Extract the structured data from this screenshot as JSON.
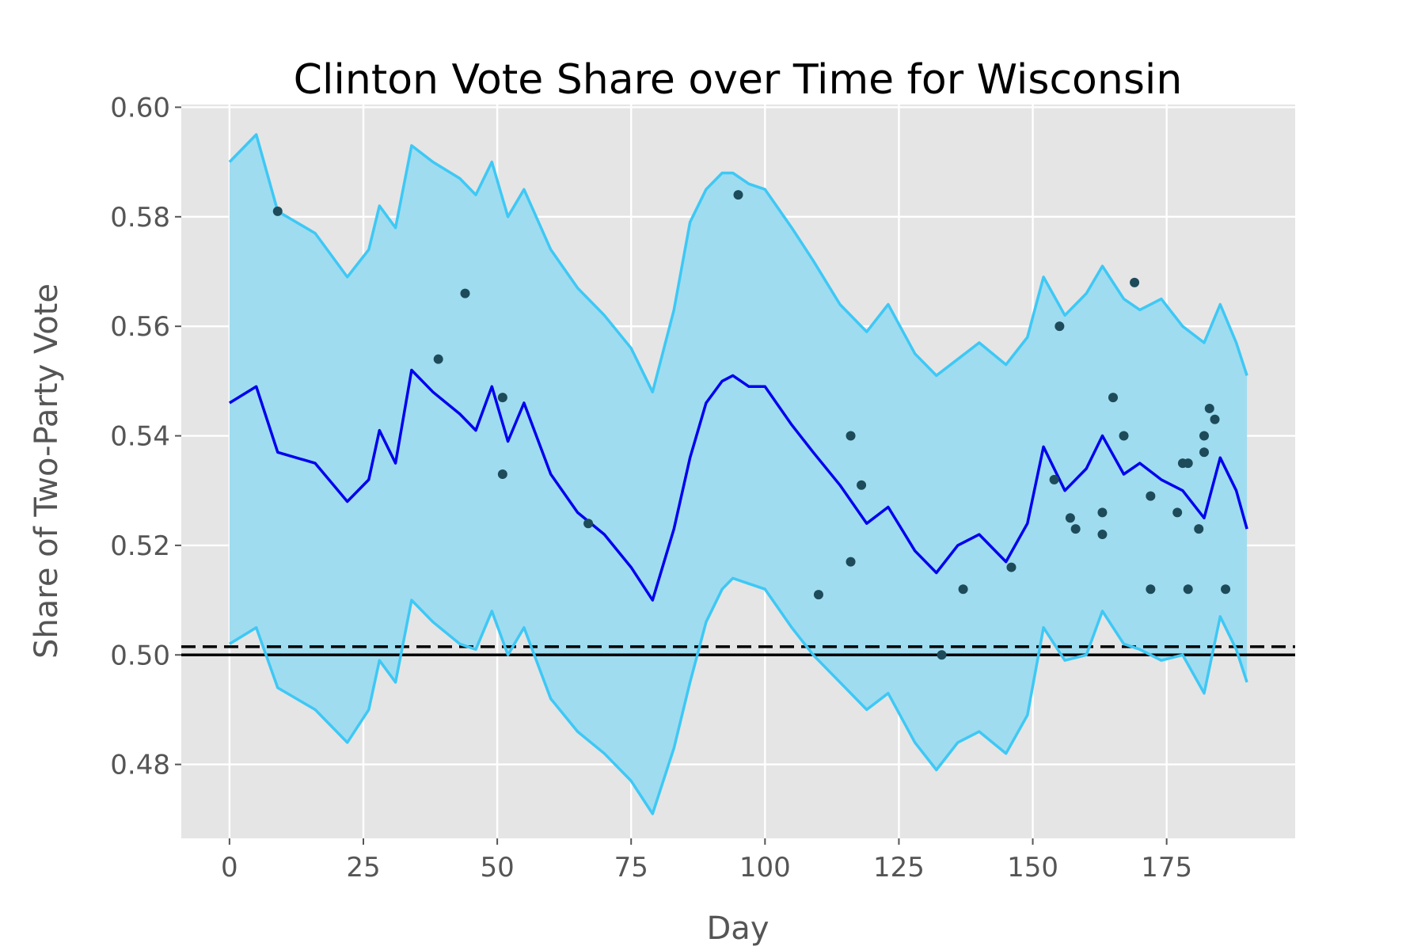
{
  "chart_data": {
    "type": "line",
    "title": "Clinton Vote Share over Time for Wisconsin",
    "xlabel": "Day",
    "ylabel": "Share of Two-Party Vote",
    "xlim": [
      -9,
      199
    ],
    "ylim": [
      0.4665,
      0.6005
    ],
    "xticks": [
      0,
      25,
      50,
      75,
      100,
      125,
      150,
      175
    ],
    "yticks": [
      0.48,
      0.5,
      0.52,
      0.54,
      0.56,
      0.58,
      0.6
    ],
    "ytick_labels": [
      "0.48",
      "0.50",
      "0.52",
      "0.54",
      "0.56",
      "0.58",
      "0.60"
    ],
    "grid": true,
    "background": "#e5e5e5",
    "colors": {
      "band_fill": "#9fdcf0",
      "band_edges": "#3ec8f5",
      "mean_line": "#0000ee",
      "polls": "#1d4b5a",
      "reference_lines": "#000000"
    },
    "x": [
      0,
      5,
      9,
      16,
      22,
      26,
      28,
      31,
      34,
      38,
      43,
      46,
      49,
      52,
      55,
      60,
      65,
      70,
      75,
      79,
      83,
      86,
      89,
      92,
      94,
      97,
      100,
      105,
      109,
      114,
      119,
      123,
      128,
      132,
      136,
      140,
      145,
      149,
      152,
      156,
      160,
      163,
      167,
      170,
      174,
      178,
      182,
      185,
      188,
      190
    ],
    "series": [
      {
        "values": [
          0.546,
          0.549,
          0.537,
          0.535,
          0.528,
          0.532,
          0.541,
          0.535,
          0.552,
          0.548,
          0.544,
          0.541,
          0.549,
          0.539,
          0.546,
          0.533,
          0.526,
          0.522,
          0.516,
          0.51,
          0.523,
          0.536,
          0.546,
          0.55,
          0.551,
          0.549,
          0.549,
          0.542,
          0.537,
          0.531,
          0.524,
          0.527,
          0.519,
          0.515,
          0.52,
          0.522,
          0.517,
          0.524,
          0.538,
          0.53,
          0.534,
          0.54,
          0.533,
          0.535,
          0.532,
          0.53,
          0.525,
          0.536,
          0.53,
          0.523
        ]
      },
      {
        "values": [
          0.59,
          0.595,
          0.581,
          0.577,
          0.569,
          0.574,
          0.582,
          0.578,
          0.593,
          0.59,
          0.587,
          0.584,
          0.59,
          0.58,
          0.585,
          0.574,
          0.567,
          0.562,
          0.556,
          0.548,
          0.563,
          0.579,
          0.585,
          0.588,
          0.588,
          0.586,
          0.585,
          0.578,
          0.572,
          0.564,
          0.559,
          0.564,
          0.555,
          0.551,
          0.554,
          0.557,
          0.553,
          0.558,
          0.569,
          0.562,
          0.566,
          0.571,
          0.565,
          0.563,
          0.565,
          0.56,
          0.557,
          0.564,
          0.557,
          0.551
        ]
      },
      {
        "values": [
          0.502,
          0.505,
          0.494,
          0.49,
          0.484,
          0.49,
          0.499,
          0.495,
          0.51,
          0.506,
          0.502,
          0.501,
          0.508,
          0.5,
          0.505,
          0.492,
          0.486,
          0.482,
          0.477,
          0.471,
          0.483,
          0.495,
          0.506,
          0.512,
          0.514,
          0.513,
          0.512,
          0.505,
          0.5,
          0.495,
          0.49,
          0.493,
          0.484,
          0.479,
          0.484,
          0.486,
          0.482,
          0.489,
          0.505,
          0.499,
          0.5,
          0.508,
          0.502,
          0.501,
          0.499,
          0.5,
          0.493,
          0.507,
          0.501,
          0.495
        ]
      }
    ],
    "poll_points": [
      {
        "x": 9,
        "y": 0.581
      },
      {
        "x": 39,
        "y": 0.554
      },
      {
        "x": 44,
        "y": 0.566
      },
      {
        "x": 51,
        "y": 0.547
      },
      {
        "x": 51,
        "y": 0.533
      },
      {
        "x": 67,
        "y": 0.524
      },
      {
        "x": 95,
        "y": 0.584
      },
      {
        "x": 110,
        "y": 0.511
      },
      {
        "x": 116,
        "y": 0.54
      },
      {
        "x": 116,
        "y": 0.517
      },
      {
        "x": 118,
        "y": 0.531
      },
      {
        "x": 133,
        "y": 0.5
      },
      {
        "x": 137,
        "y": 0.512
      },
      {
        "x": 146,
        "y": 0.516
      },
      {
        "x": 154,
        "y": 0.532
      },
      {
        "x": 155,
        "y": 0.56
      },
      {
        "x": 157,
        "y": 0.525
      },
      {
        "x": 158,
        "y": 0.523
      },
      {
        "x": 163,
        "y": 0.526
      },
      {
        "x": 163,
        "y": 0.522
      },
      {
        "x": 165,
        "y": 0.547
      },
      {
        "x": 167,
        "y": 0.54
      },
      {
        "x": 169,
        "y": 0.568
      },
      {
        "x": 172,
        "y": 0.512
      },
      {
        "x": 172,
        "y": 0.529
      },
      {
        "x": 177,
        "y": 0.526
      },
      {
        "x": 178,
        "y": 0.535
      },
      {
        "x": 179,
        "y": 0.535
      },
      {
        "x": 179,
        "y": 0.512
      },
      {
        "x": 181,
        "y": 0.523
      },
      {
        "x": 182,
        "y": 0.54
      },
      {
        "x": 182,
        "y": 0.537
      },
      {
        "x": 183,
        "y": 0.545
      },
      {
        "x": 184,
        "y": 0.543
      },
      {
        "x": 186,
        "y": 0.512
      }
    ],
    "reference_lines": [
      {
        "y": 0.5,
        "style": "solid"
      },
      {
        "y": 0.5015,
        "style": "dashed"
      }
    ]
  }
}
